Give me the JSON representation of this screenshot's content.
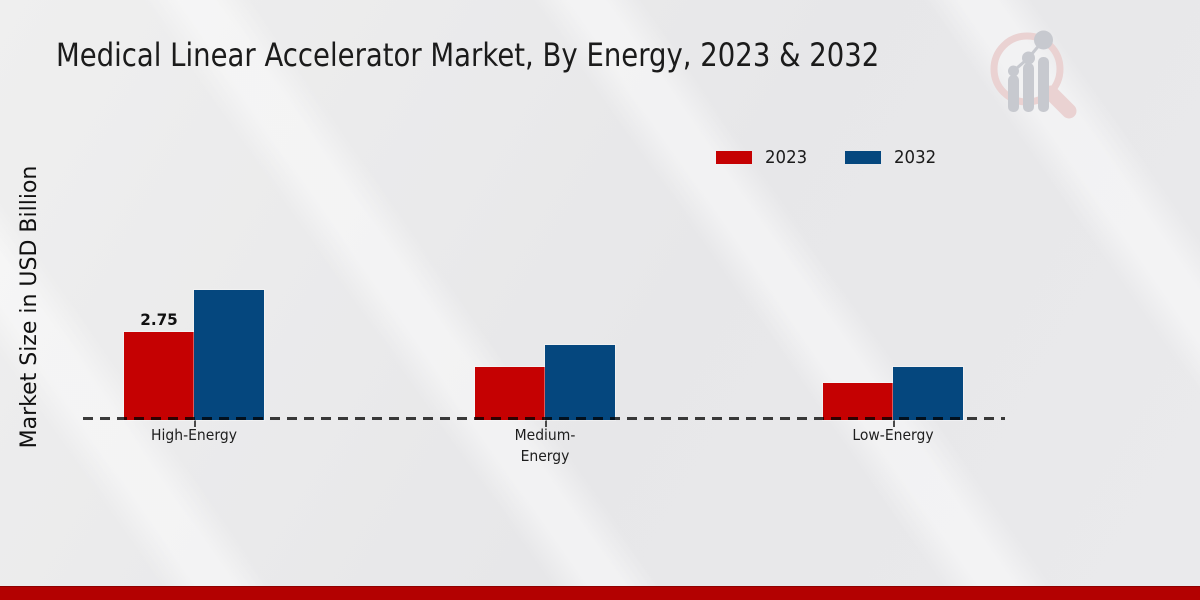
{
  "chart_data": {
    "type": "bar",
    "title": "Medical Linear Accelerator Market, By Energy, 2023 & 2032",
    "xlabel": "",
    "ylabel": "Market Size in USD Billion",
    "categories": [
      "High-Energy",
      "Medium-Energy",
      "Low-Energy"
    ],
    "category_display": [
      "High-Energy",
      "Medium-\nEnergy",
      "Low-Energy"
    ],
    "series": [
      {
        "name": "2023",
        "color": "#c50102",
        "values": [
          2.75,
          1.65,
          1.15
        ]
      },
      {
        "name": "2032",
        "color": "#05477e",
        "values": [
          4.05,
          2.35,
          1.65
        ]
      }
    ],
    "bar_label": {
      "series_index": 0,
      "category_index": 0,
      "text": "2.75"
    },
    "ylim": [
      0,
      4.5
    ],
    "grid": false,
    "y_axis_ticks_visible": false,
    "legend_position": "top-right",
    "baseline_style": "dashed"
  },
  "branding": {
    "watermark_icon": "magnifier-bar-chart-logo",
    "footer_bar_color": "#b30101",
    "watermark_ring_color": "#ead2d2",
    "watermark_bar_color": "#c7c9cf"
  }
}
